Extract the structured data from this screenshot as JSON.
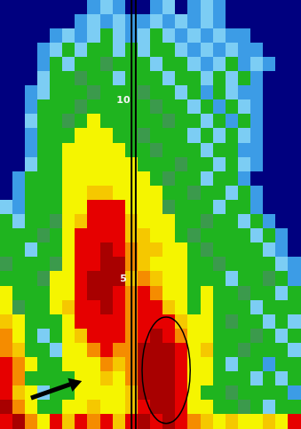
{
  "chart_data": {
    "type": "heatmap",
    "x": [
      0.5,
      1.5,
      2.5,
      3.5,
      4.5,
      5.5,
      6.5,
      7.5,
      8.5,
      9.5,
      10.5,
      11.5,
      12.5,
      13.5,
      14.5,
      15.5,
      16.5,
      17.5,
      18.5,
      19.5,
      20.5,
      21.5,
      22.5,
      23.5
    ],
    "y": [
      12.6,
      12.2,
      11.8,
      11.4,
      11.0,
      10.6,
      10.2,
      9.8,
      9.4,
      9.0,
      8.6,
      8.2,
      7.8,
      7.4,
      7.0,
      6.6,
      6.2,
      5.8,
      5.4,
      5.0,
      4.6,
      4.2,
      3.8,
      3.4,
      3.0,
      2.6,
      2.2,
      1.8,
      1.4,
      1.0
    ],
    "xlim": [
      0,
      24
    ],
    "ylim": [
      0.8,
      12.8
    ],
    "yticks": [
      5,
      10
    ],
    "grid": false,
    "color_levels": [
      10,
      15,
      20,
      25,
      30,
      35,
      40,
      45,
      50,
      55
    ],
    "level_colors": [
      "#00007f",
      "#3c9ce6",
      "#7ccdf4",
      "#1fb41f",
      "#3b9a4c",
      "#a8d030",
      "#f5f500",
      "#f5c800",
      "#f58c00",
      "#e60000",
      "#a80000"
    ],
    "cells": [
      [
        5,
        5,
        5,
        5,
        5,
        5,
        5,
        12,
        17,
        12,
        5,
        5,
        12,
        17,
        5,
        12,
        17,
        12,
        5,
        5,
        5,
        5,
        5,
        5
      ],
      [
        5,
        5,
        5,
        5,
        5,
        5,
        12,
        17,
        12,
        17,
        12,
        12,
        17,
        12,
        17,
        12,
        17,
        12,
        5,
        5,
        5,
        5,
        5,
        5
      ],
      [
        5,
        5,
        5,
        5,
        12,
        17,
        12,
        17,
        22,
        17,
        12,
        17,
        22,
        17,
        12,
        17,
        12,
        17,
        12,
        12,
        5,
        5,
        5,
        5
      ],
      [
        5,
        5,
        5,
        12,
        17,
        22,
        17,
        22,
        22,
        17,
        22,
        17,
        22,
        22,
        17,
        12,
        17,
        12,
        17,
        12,
        12,
        5,
        5,
        5
      ],
      [
        5,
        5,
        5,
        12,
        22,
        17,
        22,
        22,
        27,
        22,
        22,
        22,
        17,
        22,
        22,
        17,
        12,
        17,
        22,
        12,
        17,
        12,
        5,
        5
      ],
      [
        5,
        5,
        5,
        17,
        22,
        22,
        27,
        22,
        22,
        17,
        22,
        22,
        22,
        17,
        22,
        22,
        17,
        22,
        17,
        22,
        12,
        5,
        5,
        5
      ],
      [
        5,
        5,
        12,
        17,
        22,
        22,
        22,
        27,
        22,
        22,
        22,
        27,
        22,
        22,
        17,
        22,
        12,
        22,
        17,
        12,
        12,
        5,
        5,
        5
      ],
      [
        5,
        5,
        12,
        22,
        22,
        22,
        27,
        22,
        22,
        22,
        22,
        22,
        27,
        22,
        22,
        17,
        22,
        12,
        22,
        17,
        12,
        5,
        5,
        5
      ],
      [
        5,
        5,
        17,
        22,
        22,
        27,
        22,
        37,
        22,
        22,
        22,
        22,
        22,
        27,
        22,
        22,
        17,
        22,
        12,
        22,
        12,
        5,
        5,
        5
      ],
      [
        5,
        5,
        12,
        22,
        22,
        22,
        37,
        37,
        37,
        22,
        22,
        27,
        22,
        22,
        22,
        17,
        22,
        17,
        22,
        17,
        12,
        5,
        5,
        5
      ],
      [
        5,
        5,
        12,
        22,
        22,
        37,
        37,
        37,
        37,
        37,
        22,
        22,
        27,
        22,
        22,
        22,
        17,
        22,
        22,
        12,
        12,
        5,
        5,
        5
      ],
      [
        5,
        5,
        17,
        22,
        22,
        37,
        37,
        37,
        37,
        37,
        37,
        22,
        22,
        22,
        27,
        22,
        22,
        17,
        22,
        17,
        12,
        5,
        5,
        5
      ],
      [
        5,
        12,
        22,
        22,
        22,
        37,
        37,
        37,
        37,
        37,
        37,
        37,
        22,
        27,
        22,
        22,
        17,
        22,
        22,
        12,
        5,
        5,
        5,
        5
      ],
      [
        5,
        12,
        22,
        22,
        22,
        37,
        37,
        42,
        42,
        37,
        37,
        37,
        37,
        22,
        22,
        27,
        22,
        22,
        17,
        22,
        12,
        5,
        5,
        5
      ],
      [
        17,
        12,
        22,
        22,
        22,
        37,
        37,
        52,
        52,
        52,
        37,
        37,
        37,
        27,
        22,
        22,
        22,
        17,
        22,
        22,
        12,
        5,
        5,
        5
      ],
      [
        22,
        17,
        22,
        22,
        27,
        37,
        42,
        52,
        52,
        52,
        42,
        37,
        37,
        37,
        22,
        22,
        27,
        22,
        22,
        17,
        22,
        12,
        5,
        5
      ],
      [
        22,
        22,
        22,
        27,
        22,
        37,
        52,
        52,
        52,
        52,
        42,
        42,
        37,
        37,
        22,
        27,
        22,
        22,
        22,
        22,
        17,
        22,
        12,
        5
      ],
      [
        22,
        22,
        17,
        22,
        22,
        37,
        52,
        52,
        57,
        52,
        47,
        42,
        42,
        37,
        37,
        22,
        27,
        22,
        22,
        22,
        22,
        17,
        12,
        5
      ],
      [
        27,
        22,
        22,
        22,
        27,
        37,
        52,
        52,
        57,
        57,
        47,
        42,
        37,
        37,
        37,
        22,
        22,
        27,
        22,
        22,
        22,
        22,
        17,
        12
      ],
      [
        22,
        22,
        22,
        27,
        37,
        37,
        52,
        57,
        57,
        57,
        42,
        47,
        42,
        37,
        37,
        22,
        22,
        22,
        17,
        22,
        22,
        27,
        22,
        12
      ],
      [
        37,
        22,
        22,
        22,
        37,
        37,
        52,
        57,
        57,
        52,
        47,
        52,
        47,
        37,
        37,
        22,
        37,
        22,
        22,
        27,
        22,
        22,
        17,
        22
      ],
      [
        37,
        27,
        22,
        22,
        37,
        42,
        52,
        52,
        57,
        52,
        47,
        52,
        52,
        42,
        37,
        22,
        37,
        22,
        22,
        22,
        17,
        22,
        22,
        22
      ],
      [
        42,
        37,
        22,
        22,
        22,
        37,
        52,
        52,
        52,
        52,
        47,
        52,
        52,
        52,
        42,
        37,
        37,
        22,
        27,
        22,
        22,
        17,
        22,
        17
      ],
      [
        47,
        37,
        22,
        17,
        22,
        37,
        42,
        52,
        52,
        52,
        47,
        52,
        57,
        52,
        47,
        37,
        37,
        22,
        22,
        22,
        27,
        22,
        17,
        22
      ],
      [
        47,
        42,
        22,
        22,
        17,
        37,
        37,
        47,
        52,
        47,
        47,
        57,
        57,
        57,
        52,
        37,
        42,
        22,
        22,
        27,
        22,
        22,
        22,
        17
      ],
      [
        52,
        47,
        37,
        22,
        22,
        37,
        37,
        37,
        47,
        42,
        47,
        57,
        57,
        57,
        52,
        37,
        37,
        22,
        17,
        22,
        22,
        12,
        22,
        22
      ],
      [
        52,
        47,
        22,
        22,
        22,
        22,
        37,
        37,
        42,
        37,
        47,
        57,
        57,
        57,
        52,
        37,
        37,
        22,
        22,
        22,
        17,
        22,
        17,
        22
      ],
      [
        52,
        42,
        37,
        17,
        22,
        22,
        37,
        37,
        37,
        37,
        42,
        57,
        57,
        57,
        52,
        37,
        22,
        22,
        27,
        22,
        22,
        22,
        22,
        12
      ],
      [
        57,
        47,
        37,
        22,
        22,
        37,
        37,
        42,
        37,
        37,
        42,
        52,
        57,
        57,
        52,
        37,
        37,
        22,
        22,
        27,
        22,
        17,
        22,
        22
      ],
      [
        52,
        57,
        47,
        37,
        52,
        42,
        52,
        47,
        52,
        42,
        52,
        57,
        52,
        57,
        52,
        47,
        42,
        37,
        42,
        37,
        37,
        42,
        37,
        52
      ]
    ]
  }
}
